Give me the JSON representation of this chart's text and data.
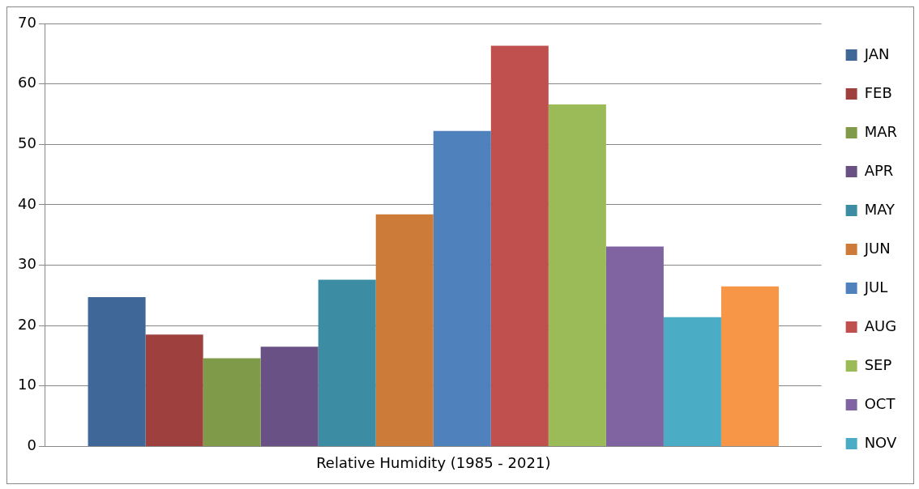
{
  "chart_data": {
    "type": "bar",
    "categories": [
      "Relative Humidity (1985 - 2021)"
    ],
    "series": [
      {
        "name": "JAN",
        "color": "#3f6899",
        "values": [
          24.7
        ]
      },
      {
        "name": "FEB",
        "color": "#9e413e",
        "values": [
          18.5
        ]
      },
      {
        "name": "MAR",
        "color": "#7f9a48",
        "values": [
          14.6
        ]
      },
      {
        "name": "APR",
        "color": "#695185",
        "values": [
          16.5
        ]
      },
      {
        "name": "MAY",
        "color": "#3c8da3",
        "values": [
          27.6
        ]
      },
      {
        "name": "JUN",
        "color": "#cc7b38",
        "values": [
          38.4
        ]
      },
      {
        "name": "JUL",
        "color": "#4f81bd",
        "values": [
          52.2
        ]
      },
      {
        "name": "AUG",
        "color": "#c0504d",
        "values": [
          66.3
        ]
      },
      {
        "name": "SEP",
        "color": "#9bbb59",
        "values": [
          56.6
        ]
      },
      {
        "name": "OCT",
        "color": "#8064a2",
        "values": [
          33.1
        ]
      },
      {
        "name": "NOV",
        "color": "#4bacc6",
        "values": [
          21.4
        ]
      },
      {
        "color": "#f79646",
        "values": [
          26.5
        ]
      }
    ],
    "ylim": [
      0,
      70
    ],
    "yticks": [
      0,
      10,
      20,
      30,
      40,
      50,
      60,
      70
    ],
    "grid": "y",
    "legend": "right"
  }
}
